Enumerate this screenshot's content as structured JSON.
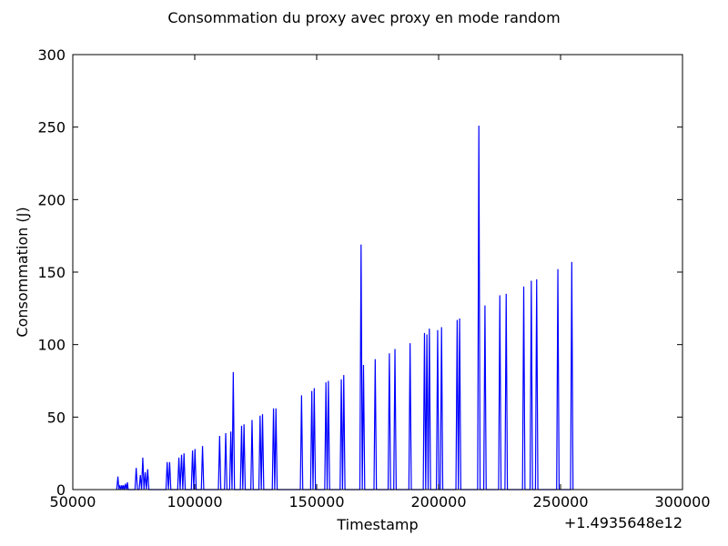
{
  "chart_data": {
    "type": "line",
    "title": "Consommation du proxy avec proxy en mode random",
    "xlabel": "Timestamp",
    "ylabel": "Consommation (J)",
    "x_offset_label": "+1.4935648e12",
    "xlim": [
      50000,
      300000
    ],
    "ylim": [
      0,
      300
    ],
    "x_ticks": [
      50000,
      100000,
      150000,
      200000,
      250000,
      300000
    ],
    "x_tick_labels": [
      "50000",
      "100000",
      "150000",
      "200000",
      "250000",
      "300000"
    ],
    "y_ticks": [
      0,
      50,
      100,
      150,
      200,
      250,
      300
    ],
    "y_tick_labels": [
      "0",
      "50",
      "100",
      "150",
      "200",
      "250",
      "300"
    ],
    "grid": false,
    "series": [
      {
        "color": "#0000ff",
        "x": [
          68000,
          68500,
          68900,
          69300,
          69700,
          70100,
          70500,
          70800,
          71200,
          71600,
          72000,
          72400,
          72700,
          73100,
          75500,
          76000,
          76500,
          77200,
          77700,
          78200,
          78700,
          79200,
          79700,
          80200,
          80700,
          81200,
          81700,
          82300,
          88200,
          88700,
          89200,
          89700,
          90200,
          90700,
          93000,
          93500,
          94000,
          94600,
          95100,
          95600,
          96100,
          96600,
          97100,
          98600,
          99100,
          99600,
          100100,
          100600,
          101100,
          102700,
          103200,
          103700,
          109700,
          110200,
          110700,
          112200,
          112700,
          113200,
          114300,
          114800,
          115300,
          115800,
          116300,
          116800,
          118700,
          119200,
          119700,
          120200,
          120700,
          121200,
          123000,
          123500,
          124000,
          126300,
          126800,
          127300,
          127800,
          128300,
          128800,
          131800,
          132300,
          132800,
          133300,
          133800,
          143300,
          143800,
          144300,
          147500,
          148000,
          148500,
          149000,
          149500,
          150000,
          153300,
          153800,
          154300,
          154800,
          155300,
          155800,
          159600,
          160100,
          160600,
          161100,
          161600,
          167700,
          168200,
          168700,
          169200,
          169700,
          170200,
          173500,
          174000,
          174500,
          179300,
          179800,
          180300,
          181600,
          182100,
          182600,
          187800,
          188300,
          188800,
          193700,
          194200,
          194700,
          195200,
          195700,
          196200,
          196700,
          199100,
          199600,
          200100,
          200700,
          201200,
          201700,
          207100,
          207600,
          208100,
          208600,
          209100,
          216000,
          216500,
          217000,
          218500,
          219000,
          219500,
          224600,
          225100,
          225600,
          227200,
          227700,
          228200,
          234400,
          234900,
          235400,
          237500,
          238000,
          238500,
          239700,
          240200,
          240700,
          248400,
          248900,
          249400,
          254100,
          254600,
          255100
        ],
        "y": [
          0,
          9,
          0,
          3,
          0,
          3,
          0,
          3,
          0,
          4,
          0,
          5,
          0,
          0,
          0,
          15,
          0,
          0,
          10,
          0,
          22,
          0,
          12,
          0,
          14,
          0,
          0,
          0,
          0,
          19,
          0,
          19,
          0,
          0,
          0,
          22,
          0,
          24,
          0,
          25,
          0,
          0,
          0,
          0,
          27,
          0,
          28,
          0,
          0,
          0,
          30,
          0,
          0,
          37,
          0,
          0,
          39,
          0,
          0,
          40,
          0,
          81,
          0,
          0,
          0,
          44,
          0,
          45,
          0,
          0,
          0,
          48,
          0,
          0,
          51,
          0,
          52,
          0,
          0,
          0,
          56,
          0,
          56,
          0,
          0,
          65,
          0,
          0,
          68,
          0,
          70,
          0,
          0,
          0,
          74,
          0,
          75,
          0,
          0,
          0,
          76,
          0,
          79,
          0,
          0,
          169,
          0,
          86,
          0,
          0,
          0,
          90,
          0,
          0,
          94,
          0,
          0,
          97,
          0,
          0,
          101,
          0,
          0,
          108,
          0,
          107,
          0,
          111,
          0,
          0,
          110,
          0,
          0,
          112,
          0,
          0,
          117,
          0,
          118,
          0,
          0,
          251,
          0,
          0,
          127,
          0,
          0,
          134,
          0,
          0,
          135,
          0,
          0,
          140,
          0,
          0,
          144,
          0,
          0,
          145,
          0,
          0,
          152,
          0,
          0,
          157,
          0
        ]
      }
    ]
  }
}
